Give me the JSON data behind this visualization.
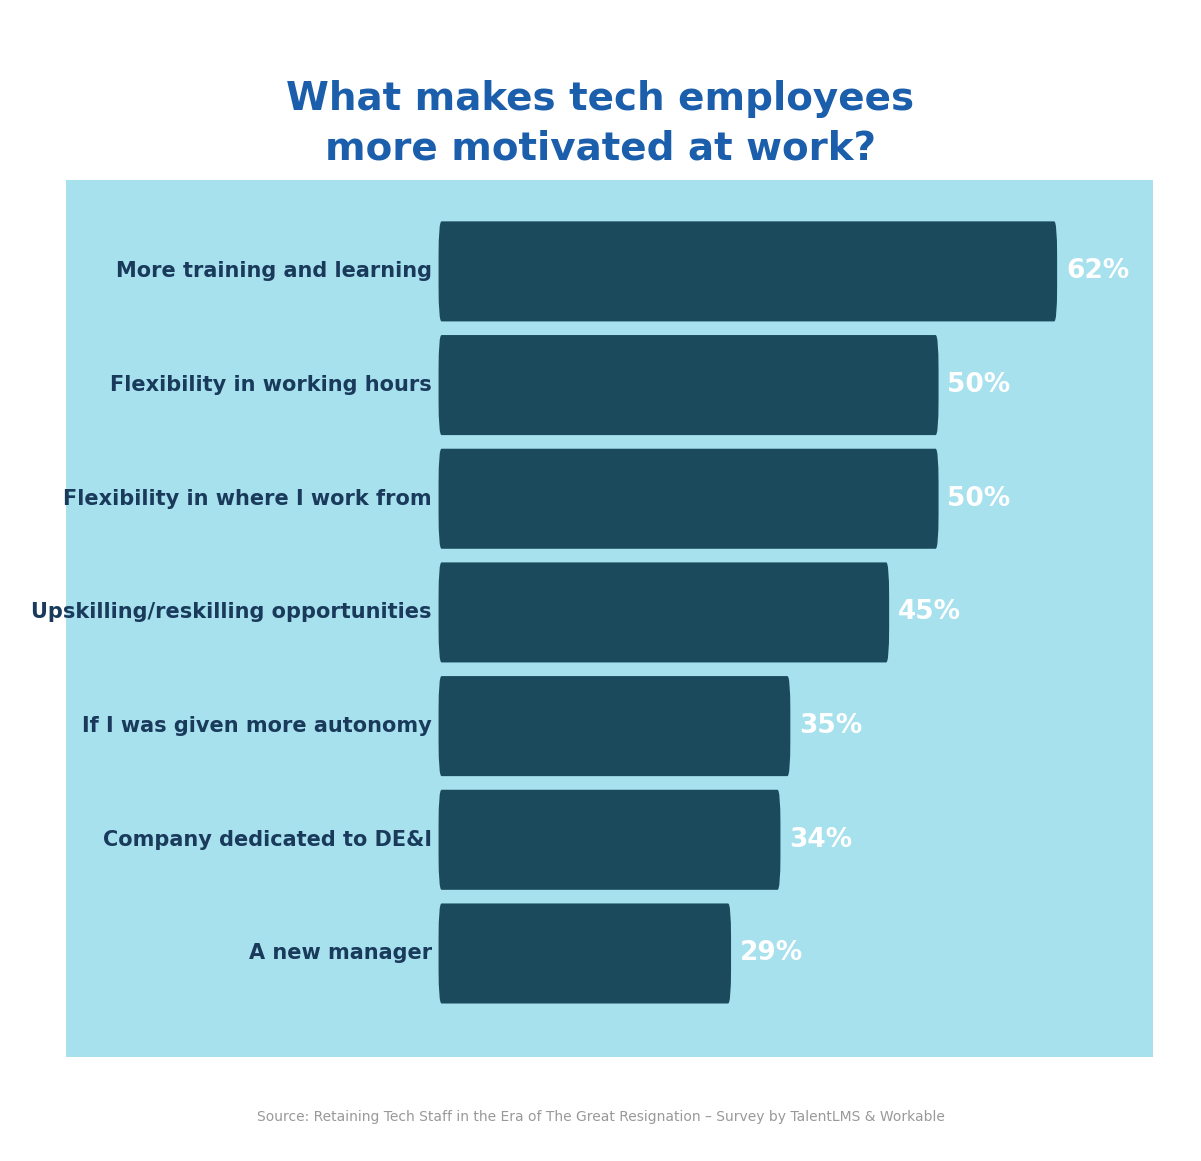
{
  "title_line1": "What makes tech employees",
  "title_line2": "more motivated at work?",
  "title_color": "#1B5EAB",
  "title_fontsize": 28,
  "categories": [
    "More training and learning",
    "Flexibility in working hours",
    "Flexibility in where I work from",
    "Upskilling/reskilling opportunities",
    "If I was given more autonomy",
    "Company dedicated to DE&I",
    "A new manager"
  ],
  "values": [
    62,
    50,
    50,
    45,
    35,
    34,
    29
  ],
  "bar_color": "#1a4a5c",
  "label_color": "#1a3a5c",
  "value_color": "#ffffff",
  "bg_color": "#88d8e8",
  "bg_alpha": 0.75,
  "source_text": "Source: Retaining Tech Staff in the Era of The Great Resignation – Survey by TalentLMS & Workable",
  "source_color": "#999999",
  "source_fontsize": 10,
  "label_fontsize": 15,
  "value_fontsize": 19,
  "bar_height": 0.28,
  "max_val": 70
}
